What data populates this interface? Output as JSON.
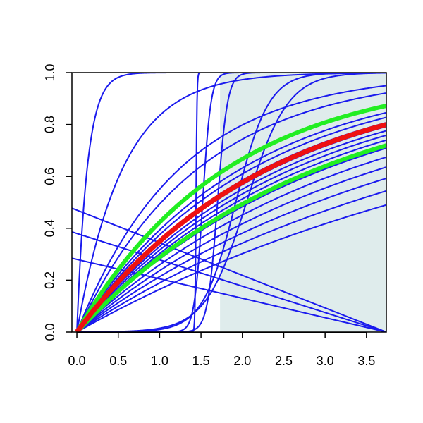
{
  "chart_data": {
    "type": "line",
    "title": "",
    "xlabel": "",
    "ylabel": "",
    "xlim": [
      -0.06,
      3.74
    ],
    "ylim": [
      0,
      1
    ],
    "grid": false,
    "legend": "none",
    "x_ticks": [
      "0.0",
      "0.5",
      "1.0",
      "1.5",
      "2.0",
      "2.5",
      "3.0",
      "3.5"
    ],
    "y_ticks": [
      "0.0",
      "0.2",
      "0.4",
      "0.6",
      "0.8",
      "1.0"
    ],
    "shaded_region": {
      "x_from": 1.73,
      "x_to": 3.74,
      "y_from": 0,
      "y_to": 1,
      "color": "#dfecec"
    },
    "colors": {
      "curves": "#1a1aee",
      "green": "#22ee22",
      "red": "#ee1111"
    },
    "blue_curves": [
      {
        "kind": "exp",
        "k": 8.0
      },
      {
        "kind": "exp",
        "k": 1.8
      },
      {
        "kind": "exp",
        "k": 0.8
      },
      {
        "kind": "exp",
        "k": 0.68
      },
      {
        "kind": "exp",
        "k": 0.5
      },
      {
        "kind": "exp",
        "k": 0.47
      },
      {
        "kind": "exp",
        "k": 0.44
      },
      {
        "kind": "exp",
        "k": 0.42
      },
      {
        "kind": "exp",
        "k": 0.4
      },
      {
        "kind": "exp",
        "k": 0.38
      },
      {
        "kind": "exp",
        "k": 0.36
      },
      {
        "kind": "exp",
        "k": 0.33
      },
      {
        "kind": "exp",
        "k": 0.3
      },
      {
        "kind": "exp",
        "k": 0.27
      },
      {
        "kind": "exp",
        "k": 0.24
      },
      {
        "kind": "exp",
        "k": 0.21
      },
      {
        "kind": "exp",
        "k": 0.18
      },
      {
        "kind": "logistic",
        "mid": 1.44,
        "scale": 0.006
      },
      {
        "kind": "logistic",
        "mid": 1.52,
        "scale": 0.05
      },
      {
        "kind": "logistic",
        "mid": 1.7,
        "scale": 0.06
      },
      {
        "kind": "logistic",
        "mid": 1.92,
        "scale": 0.2
      },
      {
        "kind": "logistic",
        "mid": 2.05,
        "scale": 0.25
      },
      {
        "kind": "linear",
        "y0": 0.47,
        "y1": 0.0
      },
      {
        "kind": "linear",
        "y0": 0.38,
        "y1": 0.0
      },
      {
        "kind": "linear",
        "y0": 0.28,
        "y1": 0.0
      }
    ],
    "green_curves": [
      {
        "kind": "exp",
        "k": 0.55
      },
      {
        "kind": "exp",
        "k": 0.34
      }
    ],
    "red_curve": {
      "kind": "exp",
      "k": 0.43
    }
  }
}
